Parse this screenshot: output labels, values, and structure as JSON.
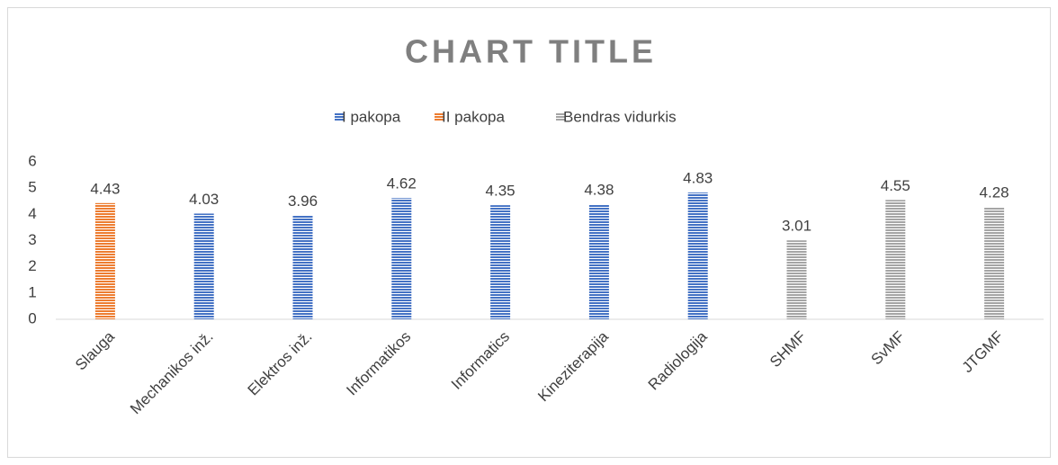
{
  "chart_data": {
    "type": "bar",
    "title": "CHART TITLE",
    "categories": [
      "Slauga",
      "Mechanikos inž.",
      "Elektros inž.",
      "Informatikos",
      "Informatics",
      "Kineziterapija",
      "Radiologija",
      "SHMF",
      "SvMF",
      "JTGMF"
    ],
    "series": [
      {
        "name": "I pakopa",
        "color": "#4472c4",
        "values": [
          null,
          4.03,
          3.96,
          4.62,
          4.35,
          4.38,
          4.83,
          null,
          null,
          null
        ]
      },
      {
        "name": "II pakopa",
        "color": "#ed7d31",
        "values": [
          4.43,
          null,
          null,
          null,
          null,
          null,
          null,
          null,
          null,
          null
        ]
      },
      {
        "name": "Bendras vidurkis",
        "color": "#a5a5a5",
        "values": [
          null,
          null,
          null,
          null,
          null,
          null,
          null,
          3.01,
          4.55,
          4.28
        ]
      }
    ],
    "ylim": [
      0,
      6
    ],
    "yticks": [
      0,
      1,
      2,
      3,
      4,
      5,
      6
    ],
    "legend": "top"
  }
}
